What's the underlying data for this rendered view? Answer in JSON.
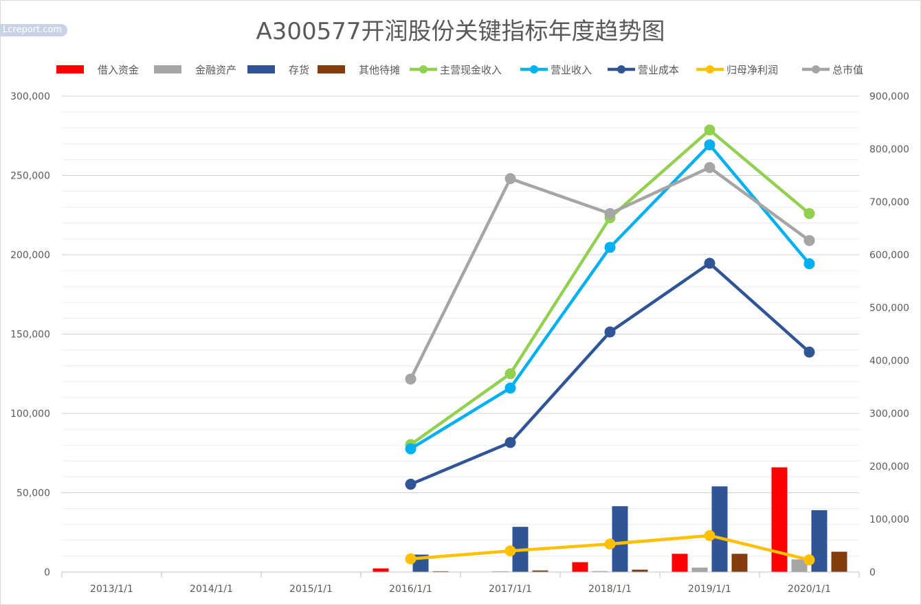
{
  "watermark": "Lcreport.com",
  "chart_data": {
    "type": "bar",
    "title": "A300577开润股份关键指标年度趋势图",
    "categories": [
      "2013/1/1",
      "2014/1/1",
      "2015/1/1",
      "2016/1/1",
      "2017/1/1",
      "2018/1/1",
      "2019/1/1",
      "2020/1/1"
    ],
    "y_left": {
      "ylim": [
        0,
        300000
      ],
      "ticks": [
        "0",
        "50,000",
        "100,000",
        "150,000",
        "200,000",
        "250,000",
        "300,000"
      ]
    },
    "y_right": {
      "ylim": [
        0,
        900000
      ],
      "ticks": [
        "0",
        "100,000",
        "200,000",
        "300,000",
        "400,000",
        "500,000",
        "600,000",
        "700,000",
        "800,000",
        "900,000"
      ]
    },
    "grid": true,
    "legend_position": "top",
    "series": [
      {
        "name": "借入资金",
        "kind": "bar",
        "axis": "left",
        "color": "#ff0000",
        "values": [
          null,
          null,
          null,
          2300,
          0,
          6200,
          11500,
          66000
        ]
      },
      {
        "name": "金融资产",
        "kind": "bar",
        "axis": "left",
        "color": "#a5a5a5",
        "values": [
          null,
          null,
          null,
          0,
          500,
          600,
          2800,
          8000
        ]
      },
      {
        "name": "存货",
        "kind": "bar",
        "axis": "left",
        "color": "#2f5597",
        "values": [
          null,
          null,
          null,
          11000,
          28500,
          41500,
          54000,
          39000
        ]
      },
      {
        "name": "其他待摊",
        "kind": "bar",
        "axis": "left",
        "color": "#843c0c",
        "values": [
          null,
          null,
          null,
          500,
          1000,
          1500,
          11500,
          12800
        ]
      },
      {
        "name": "主营现金收入",
        "kind": "line",
        "axis": "right",
        "color": "#92d050",
        "values": [
          null,
          null,
          null,
          241000,
          375000,
          670000,
          836000,
          678000
        ]
      },
      {
        "name": "营业收入",
        "kind": "line",
        "axis": "right",
        "color": "#00b0f0",
        "values": [
          null,
          null,
          null,
          233000,
          348000,
          614000,
          808000,
          583000
        ]
      },
      {
        "name": "营业成本",
        "kind": "line",
        "axis": "right",
        "color": "#2f5597",
        "values": [
          null,
          null,
          null,
          166000,
          245000,
          454000,
          584000,
          416000
        ]
      },
      {
        "name": "归母净利润",
        "kind": "line",
        "axis": "right",
        "color": "#ffc000",
        "values": [
          null,
          null,
          null,
          25000,
          40000,
          53000,
          69000,
          23000
        ]
      },
      {
        "name": "总市值",
        "kind": "line",
        "axis": "right",
        "color": "#a5a5a5",
        "values": [
          null,
          null,
          null,
          365000,
          744000,
          678000,
          765000,
          627000
        ]
      }
    ]
  }
}
